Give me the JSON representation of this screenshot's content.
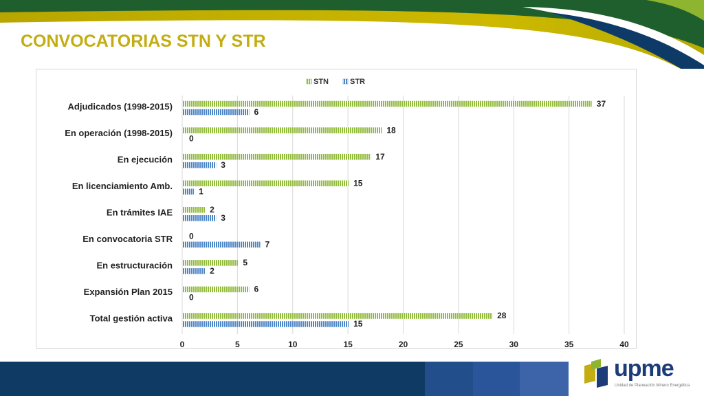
{
  "slide": {
    "title": "CONVOCATORIAS STN Y STR"
  },
  "logo": {
    "name": "upme",
    "tagline": "Unidad de Planeación Minero Energética"
  },
  "colors": {
    "title": "#c3ad12",
    "stn": "#93bb3f",
    "str": "#4f86c6",
    "header_green": "#1f5f2e",
    "header_yellow": "#c8b400",
    "header_navy": "#0d3a66",
    "footer_navy": "#0e3a63",
    "footer_blue": "#234e8c",
    "footer_light": "#3d64a8"
  },
  "chart_data": {
    "type": "bar",
    "orientation": "horizontal",
    "categories": [
      "Adjudicados (1998-2015)",
      "En operación (1998-2015)",
      "En ejecución",
      "En licenciamiento Amb.",
      "En trámites IAE",
      "En convocatoria STR",
      "En estructuración",
      "Expansión Plan 2015",
      "Total gestión activa"
    ],
    "series": [
      {
        "name": "STN",
        "values": [
          37,
          18,
          17,
          15,
          2,
          0,
          5,
          6,
          28
        ]
      },
      {
        "name": "STR",
        "values": [
          6,
          0,
          3,
          1,
          3,
          7,
          2,
          0,
          15
        ]
      }
    ],
    "xlim": [
      0,
      40
    ],
    "xticks": [
      "0",
      "5",
      "10",
      "15",
      "20",
      "25",
      "30",
      "35",
      "40"
    ],
    "legend": "top",
    "grid": true,
    "data_labels": true
  }
}
